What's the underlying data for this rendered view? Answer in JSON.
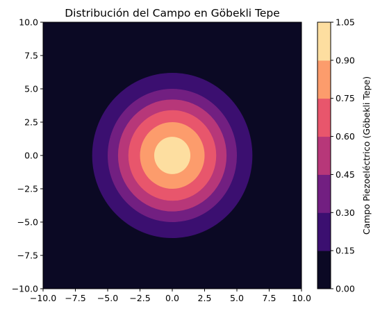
{
  "chart_data": {
    "type": "heatmap",
    "subtype": "filled-contour",
    "title": "Distribución del Campo en Göbekli Tepe",
    "xlabel": "",
    "ylabel": "",
    "xlim": [
      -10,
      10
    ],
    "ylim": [
      -10,
      10
    ],
    "x_ticks": [
      "−10.0",
      "−7.5",
      "−5.0",
      "−2.5",
      "0.0",
      "2.5",
      "5.0",
      "7.5",
      "10.0"
    ],
    "y_ticks": [
      "−10.0",
      "−7.5",
      "−5.0",
      "−2.5",
      "0.0",
      "2.5",
      "5.0",
      "7.5",
      "10.0"
    ],
    "x_tick_values": [
      -10,
      -7.5,
      -5,
      -2.5,
      0,
      2.5,
      5,
      7.5,
      10
    ],
    "y_tick_values": [
      -10,
      -7.5,
      -5,
      -2.5,
      0,
      2.5,
      5,
      7.5,
      10
    ],
    "center": [
      0,
      0
    ],
    "level_boundaries": [
      0.0,
      0.15,
      0.3,
      0.45,
      0.6,
      0.75,
      0.9,
      1.05
    ],
    "contour_radii": [
      {
        "level": 0.15,
        "radius": 6.2
      },
      {
        "level": 0.3,
        "radius": 5.0
      },
      {
        "level": 0.45,
        "radius": 4.2
      },
      {
        "level": 0.6,
        "radius": 3.4
      },
      {
        "level": 0.75,
        "radius": 2.5
      },
      {
        "level": 0.9,
        "radius": 1.4
      }
    ],
    "colormap": "magma",
    "band_colors": [
      "#0b0924",
      "#3b0f70",
      "#721f81",
      "#b73779",
      "#e8566c",
      "#fc9c6c",
      "#fddea0"
    ],
    "colorbar": {
      "label": "Campo Piezoeléctrico (Göbekli Tepe)",
      "ticks": [
        "0.00",
        "0.15",
        "0.30",
        "0.45",
        "0.60",
        "0.75",
        "0.90",
        "1.05"
      ],
      "range": [
        0,
        1.05
      ],
      "placement": "right"
    },
    "grid": false
  }
}
